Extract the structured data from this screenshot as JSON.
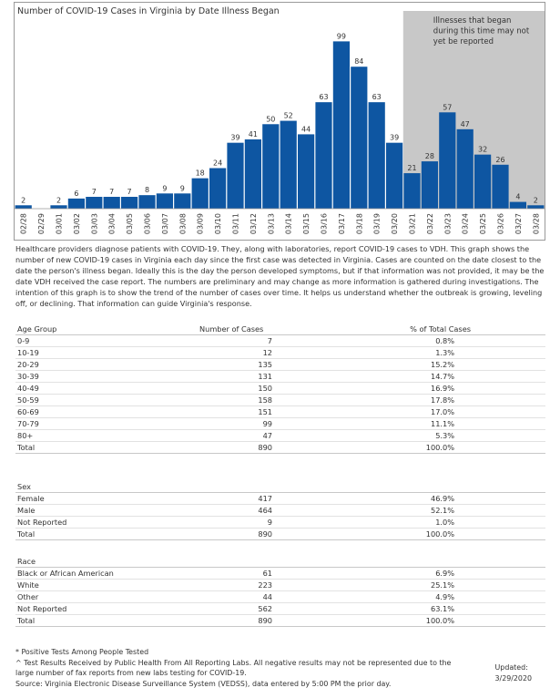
{
  "chart_data": {
    "type": "bar",
    "title": "Number of COVID-19 Cases in Virginia by Date Illness Began",
    "categories": [
      "02/28",
      "02/29",
      "03/01",
      "03/02",
      "03/03",
      "03/04",
      "03/05",
      "03/06",
      "03/07",
      "03/08",
      "03/09",
      "03/10",
      "03/11",
      "03/12",
      "03/13",
      "03/14",
      "03/15",
      "03/16",
      "03/17",
      "03/18",
      "03/19",
      "03/20",
      "03/21",
      "03/22",
      "03/23",
      "03/24",
      "03/25",
      "03/26",
      "03/27",
      "03/28"
    ],
    "values": [
      2,
      null,
      2,
      6,
      7,
      7,
      7,
      8,
      9,
      9,
      18,
      24,
      39,
      41,
      50,
      52,
      44,
      63,
      99,
      84,
      63,
      39,
      21,
      28,
      57,
      47,
      32,
      26,
      4,
      2
    ],
    "ylim": [
      0,
      110
    ],
    "bar_color": "#0e56a2",
    "shade_color": "#c8c8c8",
    "shade_start": "03/21",
    "shade_note": [
      "Illnesses that began",
      "during this time may not",
      "yet be reported"
    ],
    "grid": false
  },
  "description": "Healthcare providers diagnose patients with COVID-19. They, along with laboratories, report COVID-19 cases to VDH. This graph shows the number of new COVID-19 cases in Virginia each day since the first case was detected in Virginia. Cases are counted on the date closest to the date the person's illness began. Ideally this is the day the person developed symptoms, but if that information was not provided, it may be the date VDH received the case report. The numbers are preliminary and may change as more information is gathered during investigations. The intention of this graph is to show the trend of the number of cases over time. It helps us understand whether the outbreak is growing, leveling off, or declining. That information can guide Virginia's response.",
  "age_table": {
    "headers": [
      "Age Group",
      "Number of Cases",
      "% of Total Cases"
    ],
    "rows": [
      [
        "0-9",
        "7",
        "0.8%"
      ],
      [
        "10-19",
        "12",
        "1.3%"
      ],
      [
        "20-29",
        "135",
        "15.2%"
      ],
      [
        "30-39",
        "131",
        "14.7%"
      ],
      [
        "40-49",
        "150",
        "16.9%"
      ],
      [
        "50-59",
        "158",
        "17.8%"
      ],
      [
        "60-69",
        "151",
        "17.0%"
      ],
      [
        "70-79",
        "99",
        "11.1%"
      ],
      [
        "80+",
        "47",
        "5.3%"
      ],
      [
        "Total",
        "890",
        "100.0%"
      ]
    ]
  },
  "sex_table": {
    "header": "Sex",
    "rows": [
      [
        "Female",
        "417",
        "46.9%"
      ],
      [
        "Male",
        "464",
        "52.1%"
      ],
      [
        "Not Reported",
        "9",
        "1.0%"
      ],
      [
        "Total",
        "890",
        "100.0%"
      ]
    ]
  },
  "race_table": {
    "header": "Race",
    "rows": [
      [
        "Black or African American",
        "61",
        "6.9%"
      ],
      [
        "White",
        "223",
        "25.1%"
      ],
      [
        "Other",
        "44",
        "4.9%"
      ],
      [
        "Not Reported",
        "562",
        "63.1%"
      ],
      [
        "Total",
        "890",
        "100.0%"
      ]
    ]
  },
  "footer": {
    "note1": "* Positive Tests Among People Tested",
    "note2": "^ Test Results Received by Public Health From All Reporting Labs.  All negative results may not be represented due to the large number of fax reports from new labs testing for COVID-19.",
    "source": "Source: Virginia Electronic Disease Surveillance System (VEDSS), data entered by 5:00 PM the prior day.",
    "updated_label": "Updated:",
    "updated_date": "3/29/2020"
  }
}
